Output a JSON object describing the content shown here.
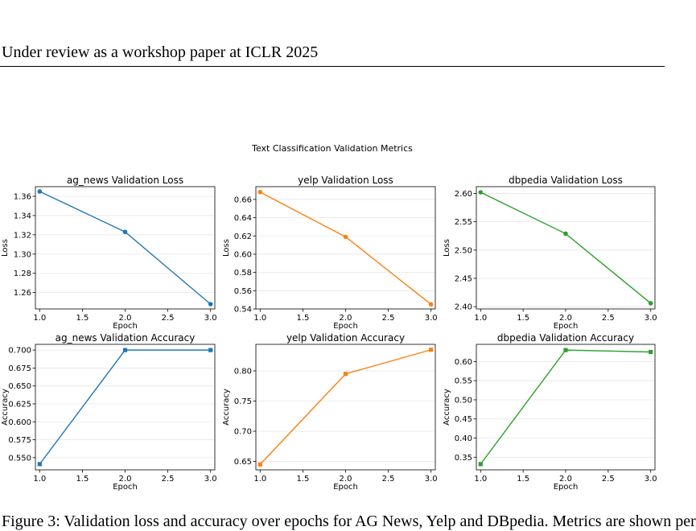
{
  "header": {
    "text": "Under review as a workshop paper at ICLR 2025"
  },
  "figure": {
    "suptitle": "Text Classification Validation Metrics"
  },
  "caption": {
    "text": "Figure 3: Validation loss and accuracy over epochs for AG News, Yelp and DBpedia. Metrics are shown per"
  },
  "colors": {
    "ag_news": "#1f77b4",
    "yelp": "#ff7f0e",
    "dbpedia": "#2ca02c"
  },
  "chart_data": [
    {
      "type": "line",
      "title": "ag_news Validation Loss",
      "xlabel": "Epoch",
      "ylabel": "Loss",
      "x": [
        1.0,
        2.0,
        3.0
      ],
      "values": [
        1.365,
        1.323,
        1.248
      ],
      "xlim": [
        0.95,
        3.05
      ],
      "ylim": [
        1.243,
        1.37
      ],
      "xticks": [
        1.0,
        1.5,
        2.0,
        2.5,
        3.0
      ],
      "xtick_labels": [
        "1.0",
        "1.5",
        "2.0",
        "2.5",
        "3.0"
      ],
      "yticks": [
        1.26,
        1.28,
        1.3,
        1.32,
        1.34,
        1.36
      ],
      "ytick_labels": [
        "1.26",
        "1.28",
        "1.30",
        "1.32",
        "1.34",
        "1.36"
      ],
      "marker": "circle",
      "color_key": "ag_news",
      "grid": "y"
    },
    {
      "type": "line",
      "title": "yelp Validation Loss",
      "xlabel": "Epoch",
      "ylabel": "Loss",
      "x": [
        1.0,
        2.0,
        3.0
      ],
      "values": [
        0.668,
        0.619,
        0.545
      ],
      "xlim": [
        0.95,
        3.05
      ],
      "ylim": [
        0.54,
        0.674
      ],
      "xticks": [
        1.0,
        1.5,
        2.0,
        2.5,
        3.0
      ],
      "xtick_labels": [
        "1.0",
        "1.5",
        "2.0",
        "2.5",
        "3.0"
      ],
      "yticks": [
        0.54,
        0.56,
        0.58,
        0.6,
        0.62,
        0.64,
        0.66
      ],
      "ytick_labels": [
        "0.54",
        "0.56",
        "0.58",
        "0.60",
        "0.62",
        "0.64",
        "0.66"
      ],
      "marker": "circle",
      "color_key": "yelp",
      "grid": "y"
    },
    {
      "type": "line",
      "title": "dbpedia Validation Loss",
      "xlabel": "Epoch",
      "ylabel": "Loss",
      "x": [
        1.0,
        2.0,
        3.0
      ],
      "values": [
        2.602,
        2.529,
        2.406
      ],
      "xlim": [
        0.95,
        3.05
      ],
      "ylim": [
        2.396,
        2.612
      ],
      "xticks": [
        1.0,
        1.5,
        2.0,
        2.5,
        3.0
      ],
      "xtick_labels": [
        "1.0",
        "1.5",
        "2.0",
        "2.5",
        "3.0"
      ],
      "yticks": [
        2.4,
        2.45,
        2.5,
        2.55,
        2.6
      ],
      "ytick_labels": [
        "2.40",
        "2.45",
        "2.50",
        "2.55",
        "2.60"
      ],
      "marker": "circle",
      "color_key": "dbpedia",
      "grid": "y"
    },
    {
      "type": "line",
      "title": "ag_news Validation Accuracy",
      "xlabel": "Epoch",
      "ylabel": "Accuracy",
      "x": [
        1.0,
        2.0,
        3.0
      ],
      "values": [
        0.541,
        0.7,
        0.7
      ],
      "xlim": [
        0.95,
        3.05
      ],
      "ylim": [
        0.533,
        0.708
      ],
      "xticks": [
        1.0,
        1.5,
        2.0,
        2.5,
        3.0
      ],
      "xtick_labels": [
        "1.0",
        "1.5",
        "2.0",
        "2.5",
        "3.0"
      ],
      "yticks": [
        0.55,
        0.575,
        0.6,
        0.625,
        0.65,
        0.675,
        0.7
      ],
      "ytick_labels": [
        "0.550",
        "0.575",
        "0.600",
        "0.625",
        "0.650",
        "0.675",
        "0.700"
      ],
      "marker": "square",
      "color_key": "ag_news",
      "grid": "y"
    },
    {
      "type": "line",
      "title": "yelp Validation Accuracy",
      "xlabel": "Epoch",
      "ylabel": "Accuracy",
      "x": [
        1.0,
        2.0,
        3.0
      ],
      "values": [
        0.645,
        0.795,
        0.835
      ],
      "xlim": [
        0.95,
        3.05
      ],
      "ylim": [
        0.636,
        0.844
      ],
      "xticks": [
        1.0,
        1.5,
        2.0,
        2.5,
        3.0
      ],
      "xtick_labels": [
        "1.0",
        "1.5",
        "2.0",
        "2.5",
        "3.0"
      ],
      "yticks": [
        0.65,
        0.7,
        0.75,
        0.8
      ],
      "ytick_labels": [
        "0.65",
        "0.70",
        "0.75",
        "0.80"
      ],
      "marker": "square",
      "color_key": "yelp",
      "grid": "y"
    },
    {
      "type": "line",
      "title": "dbpedia Validation Accuracy",
      "xlabel": "Epoch",
      "ylabel": "Accuracy",
      "x": [
        1.0,
        2.0,
        3.0
      ],
      "values": [
        0.332,
        0.63,
        0.625
      ],
      "xlim": [
        0.95,
        3.05
      ],
      "ylim": [
        0.317,
        0.645
      ],
      "xticks": [
        1.0,
        1.5,
        2.0,
        2.5,
        3.0
      ],
      "xtick_labels": [
        "1.0",
        "1.5",
        "2.0",
        "2.5",
        "3.0"
      ],
      "yticks": [
        0.35,
        0.4,
        0.45,
        0.5,
        0.55,
        0.6
      ],
      "ytick_labels": [
        "0.35",
        "0.40",
        "0.45",
        "0.50",
        "0.55",
        "0.60"
      ],
      "marker": "square",
      "color_key": "dbpedia",
      "grid": "y"
    }
  ]
}
